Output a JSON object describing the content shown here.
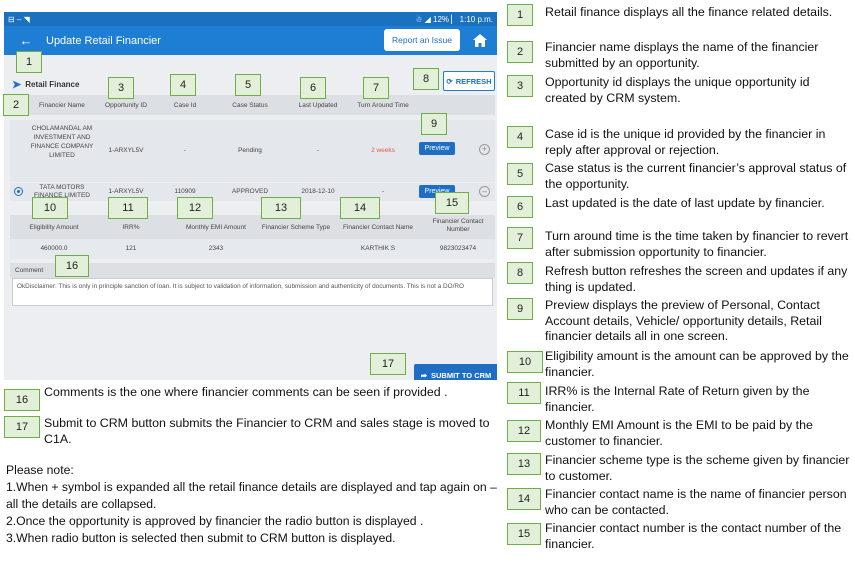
{
  "status_bar": {
    "left": "⊟ – ◥",
    "right": "☃ ◢ 12% ▏ 1:10 p.m."
  },
  "app_bar": {
    "title": "Update Retail Financier",
    "report_label": "Report an Issue"
  },
  "section": {
    "title": "Retail Finance",
    "refresh_label": "REFRESH"
  },
  "columns": [
    "Financier Name",
    "Opportunity ID",
    "Case Id",
    "Case Status",
    "Last Updated",
    "Turn Around Time"
  ],
  "rows": [
    {
      "financier_name": "CHOLAMANDAL AM INVESTMENT AND FINANCE COMPANY LIMITED",
      "opportunity_id": "1-ARXYL5V",
      "case_id": "-",
      "case_status": "Pending",
      "last_updated": "-",
      "turn_around_time": "2 weeks",
      "preview_label": "Preview"
    },
    {
      "financier_name": "TATA MOTORS FINANCE LIMITED",
      "opportunity_id": "1-ARXYL5V",
      "case_id": "110909",
      "case_status": "APPROVED",
      "last_updated": "2018-12-10",
      "turn_around_time": "-",
      "preview_label": "Preview"
    }
  ],
  "detail_columns": [
    "Eligibility Amount",
    "IRR%",
    "Monthly EMI Amount",
    "Financier Scheme Type",
    "Financier Contact Name",
    "Financier Contact Number"
  ],
  "detail_values": {
    "eligibility_amount": "460000.0",
    "irr": "121",
    "emi": "2343",
    "scheme_type": "",
    "contact_name": "KARTHIK S",
    "contact_number": "9823023474"
  },
  "comment": {
    "label": "Comment",
    "text": "OkDisclaimer: This is only in principle sanction of loan. It is subject to validation of information, submission and authenticity of documents. This is not a DO/RO"
  },
  "submit_label": "SUBMIT TO CRM",
  "badges": [
    "1",
    "2",
    "3",
    "4",
    "5",
    "6",
    "7",
    "8",
    "9",
    "10",
    "11",
    "12",
    "13",
    "14",
    "15",
    "16",
    "17"
  ],
  "notes": {
    "n1": "Retail finance displays all the finance related details.",
    "n2": "Financier name displays the name of the financier submitted by an opportunity.",
    "n3": "Opportunity id displays the unique opportunity id created by CRM system.",
    "n4": "Case id is the  unique id provided by the financier in reply after approval or rejection.",
    "n5": "Case status is the current financier’s approval status of the opportunity.",
    "n6": "Last updated is the date of last update by financier.",
    "n7": "Turn around time is the time taken by financier to revert after submission opportunity to financier.",
    "n8": "Refresh button refreshes the screen and updates if any thing is updated.",
    "n9": "Preview displays the preview of  Personal, Contact Account details, Vehicle/ opportunity details, Retail financier details all in one screen.",
    "n10": "Eligibility amount is the amount  can be approved by the financier.",
    "n11": "IRR% is the  Internal Rate of Return given by the financier.",
    "n12": "Monthly EMI Amount is the EMI to be paid by the customer to financier.",
    "n13": "Financier scheme type is the scheme given by financier to customer.",
    "n14": "Financier contact name is the name of financier person who can be contacted.",
    "n15": "Financier contact number  is the contact number of the financier.",
    "n16": "Comments is the one where financier comments can be seen if provided .",
    "n17": "Submit to CRM button submits the Financier to CRM and sales stage is moved to C1A."
  },
  "footnotes": {
    "heading": "Please note:",
    "items": [
      "1.When + symbol is expanded all the retail finance details are displayed and tap again on – all the details are collapsed.",
      "2.Once the opportunity is approved by financier the radio button is displayed .",
      "3.When radio button is selected then submit to CRM button is displayed."
    ]
  },
  "colors": {
    "app_bar": "#1e7ed4",
    "accent": "#1e6fc4",
    "badge_fill": "#e2f0d9",
    "badge_border": "#70ad47",
    "pending_red": "#e05a5a"
  }
}
